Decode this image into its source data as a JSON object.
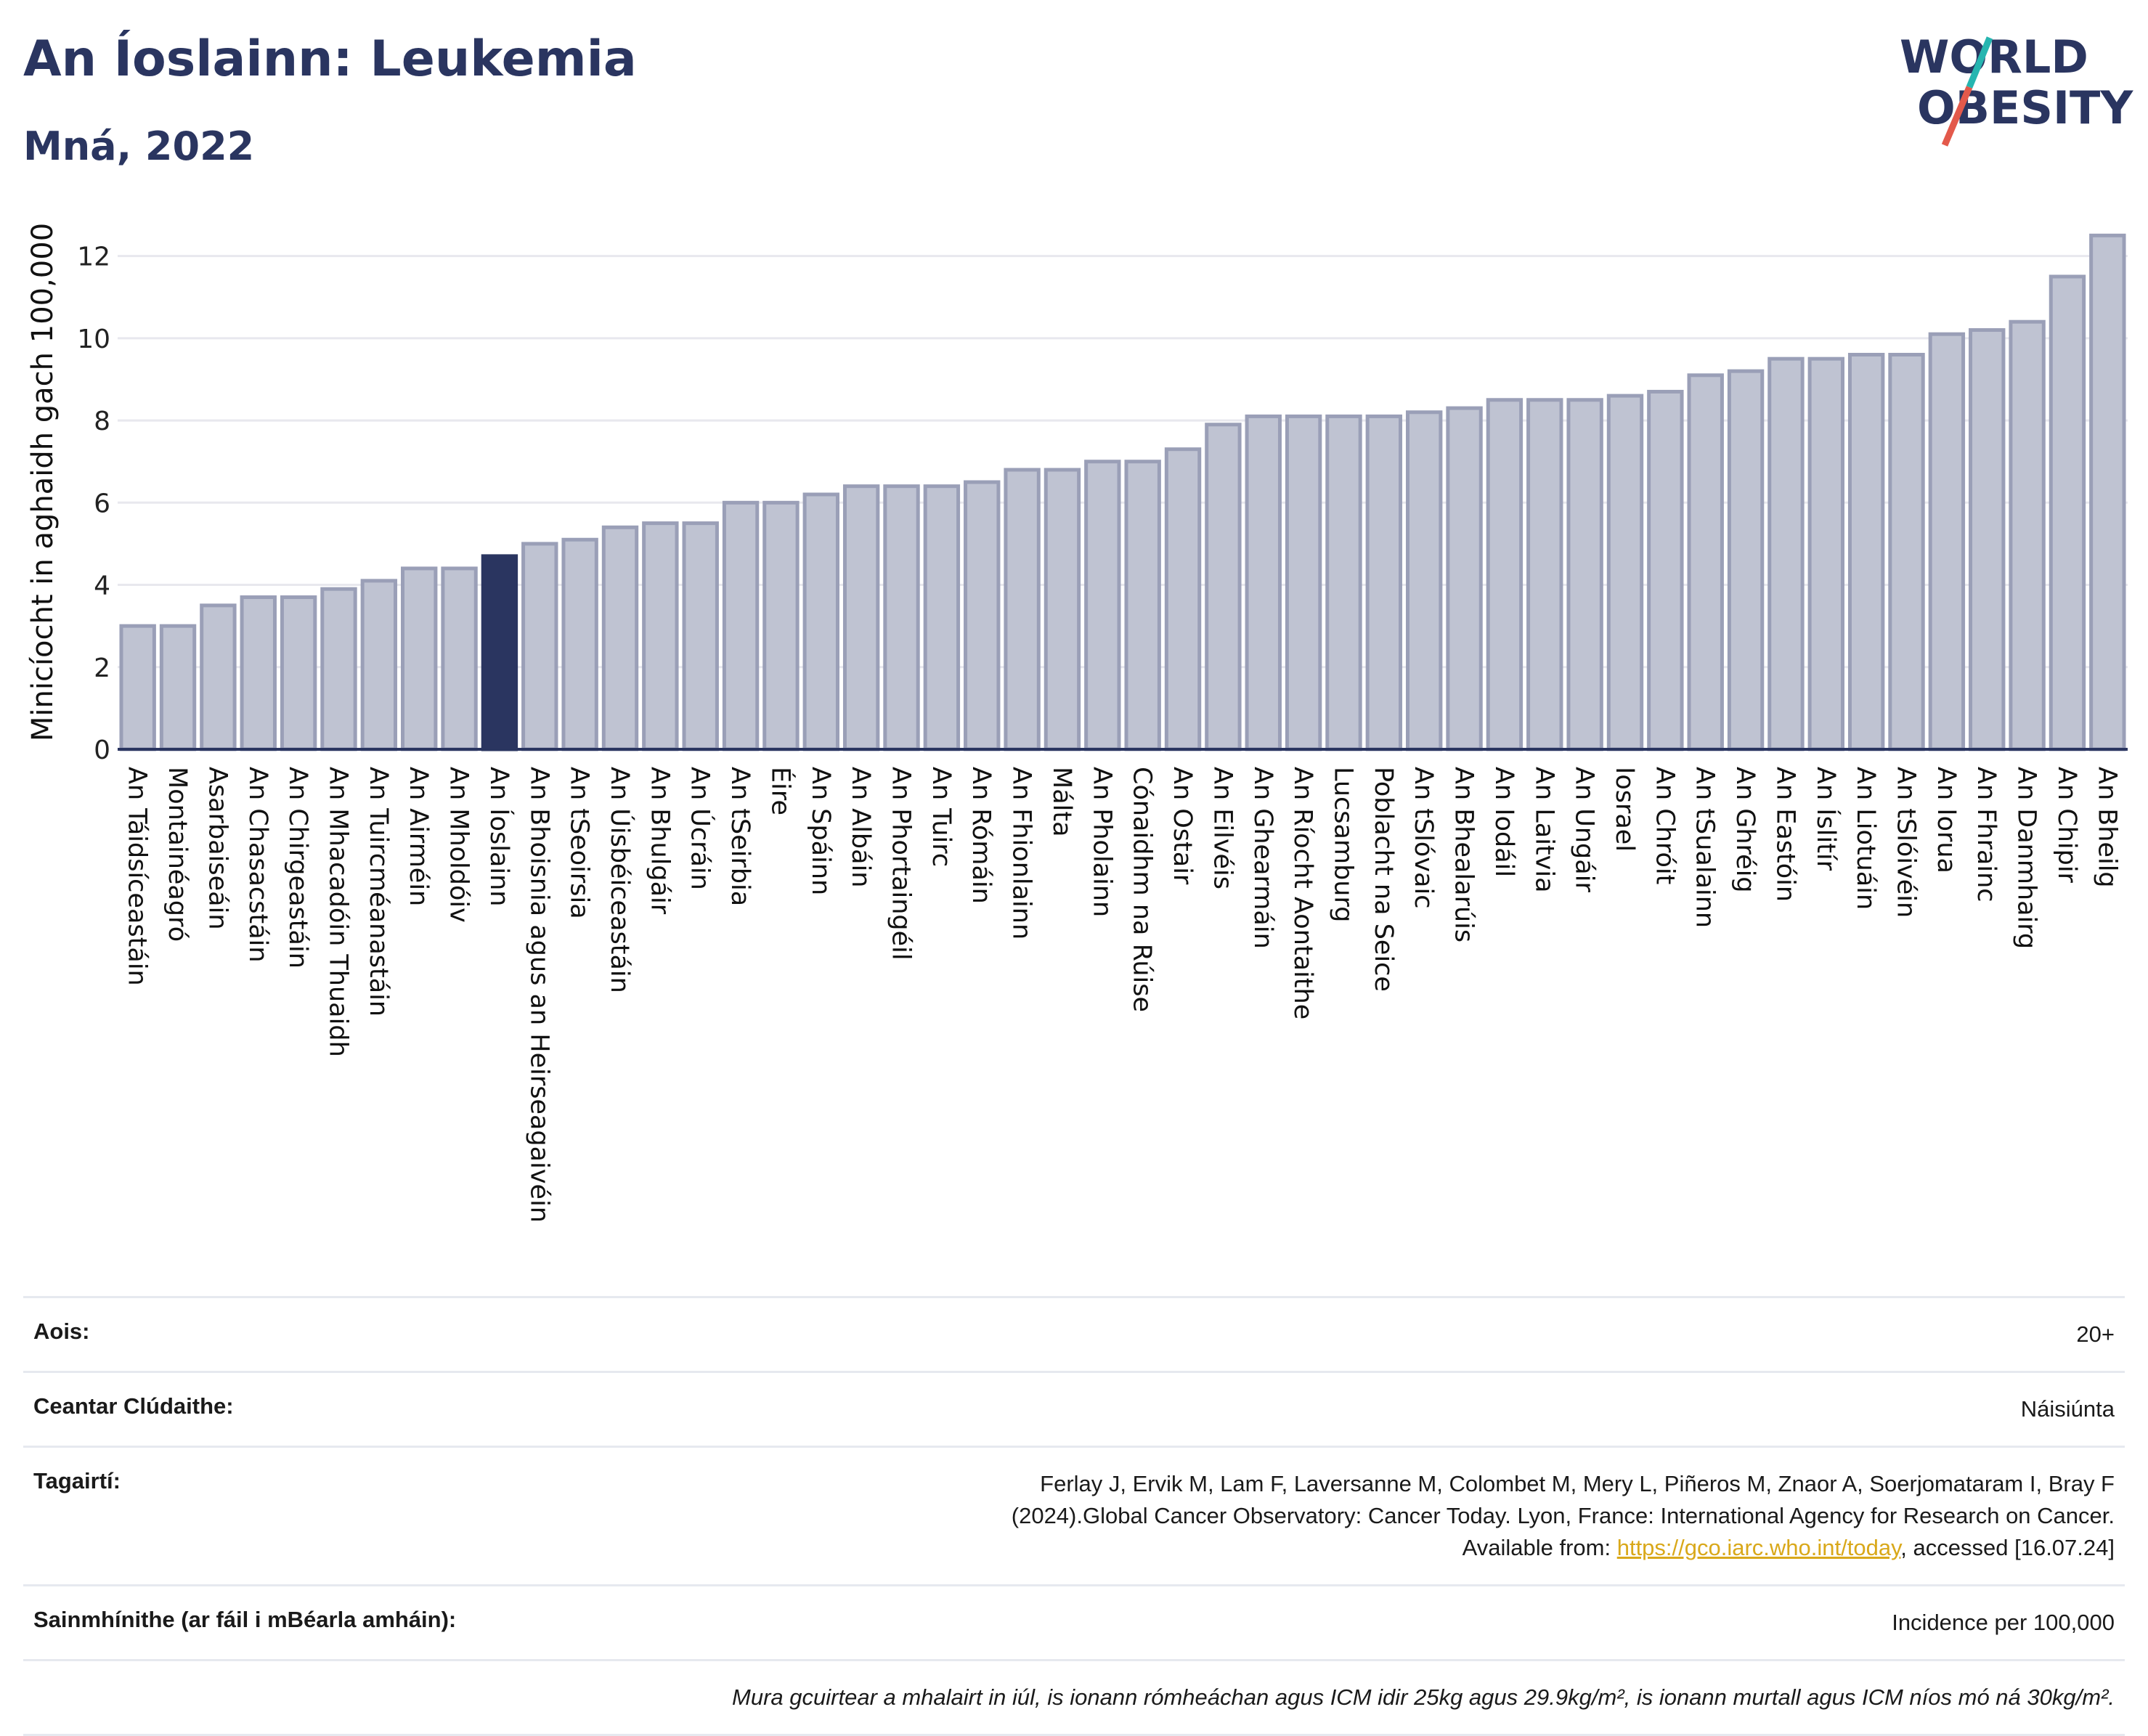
{
  "header": {
    "title": "An Íoslainn: Leukemia",
    "subtitle": "Mná, 2022"
  },
  "logo": {
    "line1": "WORLD",
    "line2": "OBESITY",
    "accent_colors": [
      "#e3594b",
      "#26b5b0"
    ]
  },
  "colors": {
    "bar": "#bfc3d2",
    "bar_border": "#9a9fb7",
    "highlight": "#2a3560",
    "text": "#2a3560"
  },
  "chart_data": {
    "type": "bar",
    "ylabel": "Minicíocht in aghaidh gach 100,000",
    "ylim": [
      0,
      13
    ],
    "yticks": [
      0,
      2,
      4,
      6,
      8,
      10,
      12
    ],
    "grid": true,
    "highlight": "An Íoslainn",
    "categories": [
      "An Táidsíceastáin",
      "Montainéagró",
      "Asarbaiseáin",
      "An Chasacstáin",
      "An Chirgeastáin",
      "An Mhacadóin Thuaidh",
      "An Tuircméanastáin",
      "An Airméin",
      "An Mholdóiv",
      "An Íoslainn",
      "An Bhoisnia agus an Heirseagaivéin",
      "An tSeoirsia",
      "An Úisbéiceastáin",
      "An Bhulgáir",
      "An Úcráin",
      "An tSeirbia",
      "Éire",
      "An Spáinn",
      "An Albáin",
      "An Phortaingéil",
      "An Tuirc",
      "An Rómáin",
      "An Fhionlainn",
      "Málta",
      "An Pholainn",
      "Cónaidhm na Rúise",
      "An Ostair",
      "An Eilvéis",
      "An Ghearmáin",
      "An Ríocht Aontaithe",
      "Lucsamburg",
      "Poblacht na Seice",
      "An tSlóvaic",
      "An Bhealarúis",
      "An Iodáil",
      "An Laitvia",
      "An Ungáir",
      "Iosrael",
      "An Chróit",
      "An tSualainn",
      "An Ghréig",
      "An Eastóin",
      "An Íslitír",
      "An Liotuáin",
      "An tSlóivéin",
      "An Iorua",
      "An Fhrainc",
      "An Danmhairg",
      "An Chipir",
      "An Bheilg"
    ],
    "values": [
      3.0,
      3.0,
      3.5,
      3.7,
      3.7,
      3.9,
      4.1,
      4.4,
      4.4,
      4.7,
      5.0,
      5.1,
      5.4,
      5.5,
      5.5,
      6.0,
      6.0,
      6.2,
      6.4,
      6.4,
      6.4,
      6.5,
      6.8,
      6.8,
      7.0,
      7.0,
      7.3,
      7.9,
      8.1,
      8.1,
      8.1,
      8.1,
      8.2,
      8.3,
      8.5,
      8.5,
      8.5,
      8.6,
      8.7,
      9.1,
      9.2,
      9.5,
      9.5,
      9.6,
      9.6,
      10.1,
      10.2,
      10.4,
      11.5,
      12.5
    ]
  },
  "info": {
    "age_label": "Aois:",
    "age_value": "20+",
    "coverage_label": "Ceantar Clúdaithe:",
    "coverage_value": "Náisiúnta",
    "refs_label": "Tagairtí:",
    "refs_text": "Ferlay J, Ervik M, Lam F, Laversanne M, Colombet M, Mery L, Piñeros M, Znaor A, Soerjomataram I, Bray F (2024).Global Cancer Observatory: Cancer Today. Lyon, France: International Agency for Research on Cancer. Available from: ",
    "refs_link": "https://gco.iarc.who.int/today",
    "refs_tail": ", accessed [16.07.24]",
    "defs_label": "Sainmhínithe (ar fáil i mBéarla amháin):",
    "defs_value": "Incidence per 100,000",
    "note": "Mura gcuirtear a mhalairt in iúl, is ionann rómheáchan agus ICM idir 25kg agus 29.9kg/m², is ionann murtall agus ICM níos mó ná 30kg/m²."
  }
}
